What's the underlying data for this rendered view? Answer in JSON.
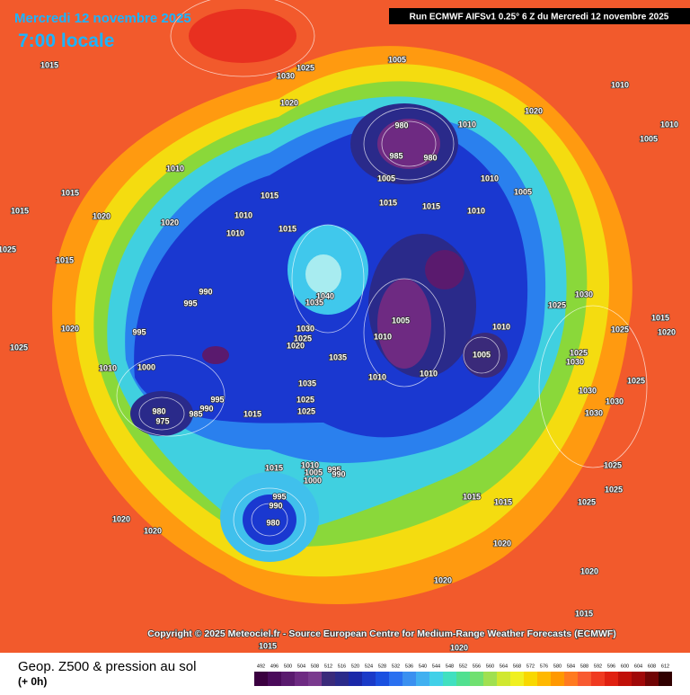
{
  "header": {
    "date": "Mercredi 12 novembre 2025",
    "time": "7:00 locale",
    "run": "Run ECMWF AIFSv1 0.25° 6 Z du Mercredi 12 novembre 2025"
  },
  "copyright": "Copyright © 2025 Meteociel.fr - Source European Centre for Medium-Range Weather Forecasts (ECMWF)",
  "legend": {
    "title": "Geop. Z500 & pression au sol",
    "lead": "(+ 0h)"
  },
  "colorbar": {
    "ticks": [
      492,
      496,
      500,
      504,
      508,
      512,
      516,
      520,
      524,
      528,
      532,
      536,
      540,
      544,
      548,
      552,
      556,
      560,
      564,
      568,
      572,
      576,
      580,
      584,
      588,
      592,
      596,
      600,
      604,
      608,
      612
    ],
    "colors": [
      "#3b0040",
      "#4a0a5a",
      "#5a1a6e",
      "#6e2a82",
      "#7a3a8e",
      "#3a2a7a",
      "#2a2a8a",
      "#1a28a8",
      "#1a3ac8",
      "#1a50e0",
      "#2a70f0",
      "#3a90f0",
      "#40b0f0",
      "#40d0e8",
      "#40e0c0",
      "#50e090",
      "#70e070",
      "#a0e050",
      "#d0e830",
      "#f0f020",
      "#f8d800",
      "#ffb800",
      "#ff9800",
      "#ff7a20",
      "#f85a30",
      "#f03a20",
      "#e02010",
      "#c01008",
      "#a00808",
      "#700404",
      "#300000"
    ]
  },
  "pressure_labels": [
    1015,
    1030,
    1025,
    1020,
    1005,
    1010,
    1020,
    1010,
    1005,
    980,
    1010,
    985,
    980,
    1005,
    1010,
    1005,
    1015,
    1015,
    1010,
    1010,
    1015,
    1015,
    1020,
    1020,
    1010,
    1015,
    1015,
    1010,
    1025,
    1015,
    990,
    995,
    1040,
    1035,
    1030,
    1025,
    1020,
    1005,
    1010,
    1010,
    1005,
    995,
    1020,
    1025,
    1010,
    1000,
    1035,
    1010,
    1010,
    1035,
    1025,
    1025,
    995,
    990,
    985,
    980,
    975,
    1015,
    1015,
    1010,
    1005,
    1000,
    995,
    990,
    995,
    990,
    980,
    1020,
    1020,
    1015,
    1015,
    1020,
    1020,
    1025,
    1025,
    1025,
    1030,
    1030,
    1030,
    1025,
    1030,
    1025,
    1020,
    1015,
    1020,
    1015,
    1025,
    1020,
    1015,
    1025,
    1030
  ]
}
